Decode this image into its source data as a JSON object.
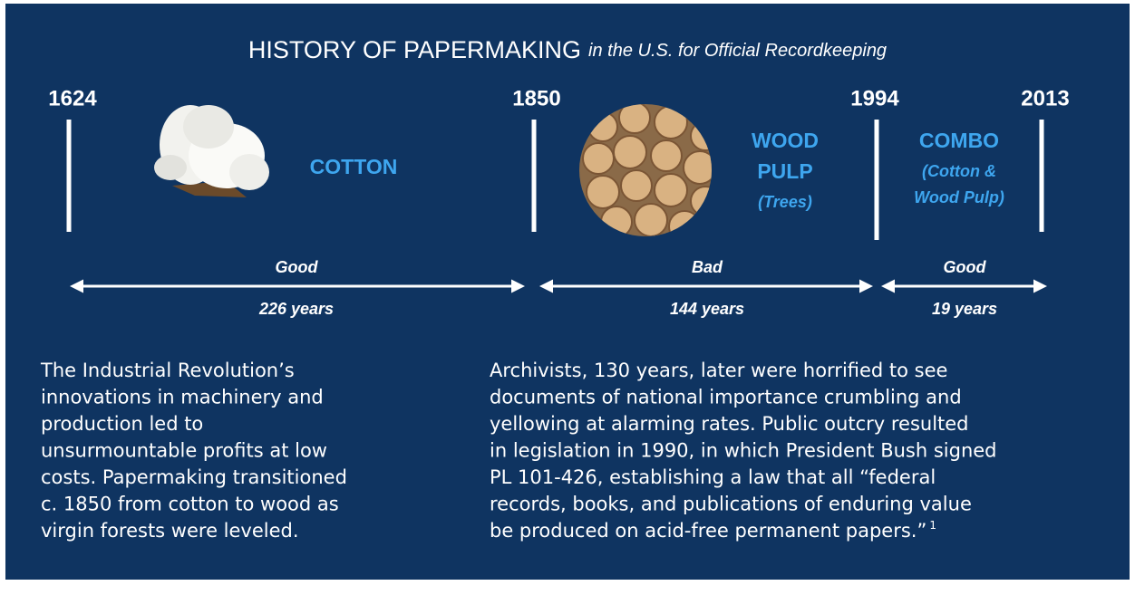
{
  "header": {
    "title": "HISTORY OF PAPERMAKING",
    "subtitle": "in the U.S. for Official Recordkeeping"
  },
  "timeline": {
    "years": [
      "1624",
      "1850",
      "1994",
      "2013"
    ],
    "eras": [
      {
        "material": [
          "COTTON"
        ],
        "rating": "Good",
        "duration": "226 years"
      },
      {
        "material": [
          "WOOD",
          "PULP",
          "(Trees)"
        ],
        "rating": "Bad",
        "duration": "144 years"
      },
      {
        "material": [
          "COMBO",
          "(Cotton &",
          "Wood Pulp)"
        ],
        "rating": "Good",
        "duration": "19 years"
      }
    ]
  },
  "paragraphs": [
    {
      "lines": [
        "The Industrial Revolution’s",
        "innovations in machinery and",
        "production led to",
        "unsurmountable profits at low",
        "costs. Papermaking transitioned",
        "c. 1850 from cotton to wood as",
        "virgin forests were leveled."
      ]
    },
    {
      "lines": [
        "Archivists, 130 years, later were horrified to see",
        "documents of national importance crumbling and",
        "yellowing at alarming rates. Public outcry resulted",
        "in legislation in 1990, in which President Bush signed",
        "PL 101-426, establishing a law that all “federal",
        "records, books, and publications of enduring value",
        "be  produced on acid-free permanent papers.”"
      ],
      "footnote": "1"
    }
  ]
}
